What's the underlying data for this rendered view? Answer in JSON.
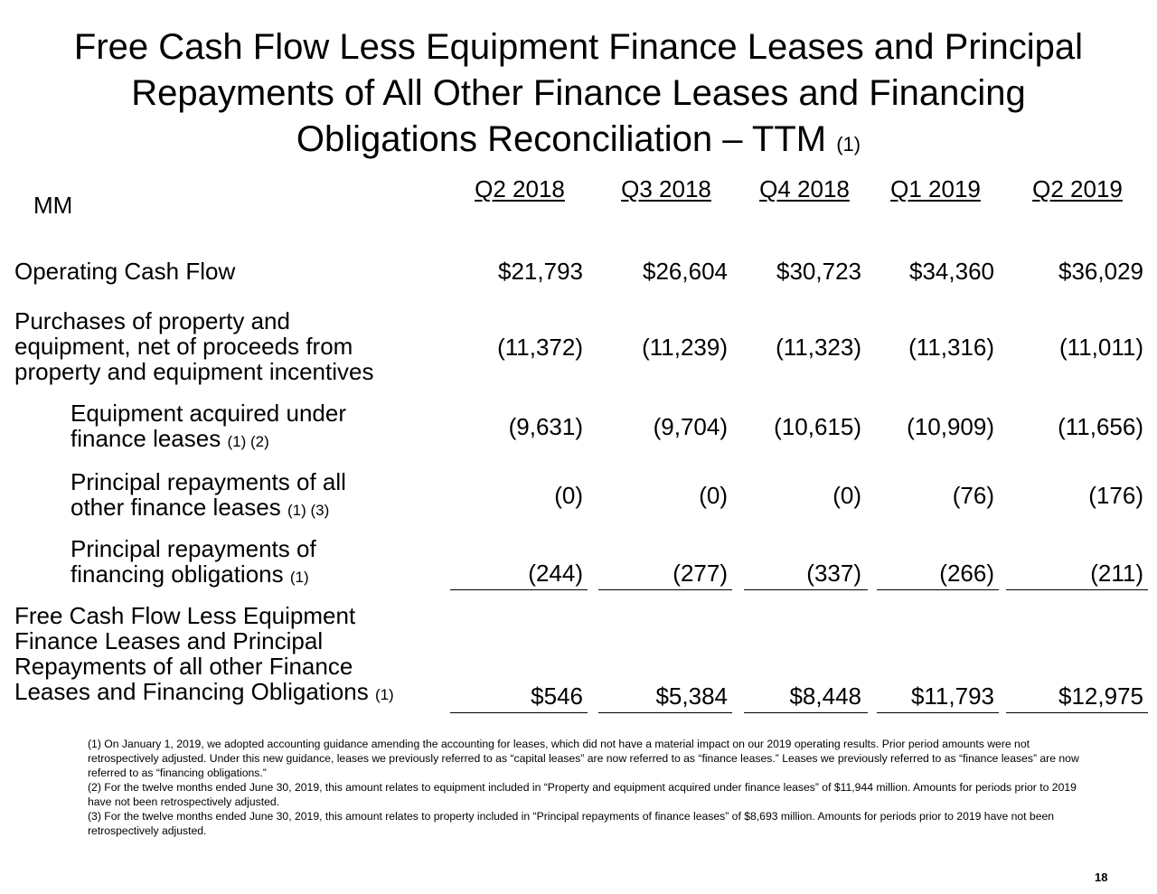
{
  "title": {
    "lines": [
      "Free Cash Flow Less Equipment Finance Leases and Principal",
      "Repayments of All Other Finance Leases and Financing",
      "Obligations Reconciliation – TTM"
    ],
    "note": "(1)"
  },
  "table": {
    "unit": "MM",
    "columns": [
      "Q2 2018",
      "Q3 2018",
      "Q4 2018",
      "Q1 2019",
      "Q2 2019"
    ],
    "rows": [
      {
        "label": [
          "Operating Cash Flow"
        ],
        "values": [
          "$21,793",
          "$26,604",
          "$30,723",
          "$34,360",
          "$36,029"
        ]
      },
      {
        "label": [
          "Purchases of property and",
          "equipment, net of proceeds from",
          "property and equipment incentives"
        ],
        "values": [
          "(11,372)",
          "(11,239)",
          "(11,323)",
          "(11,316)",
          "(11,011)"
        ]
      },
      {
        "label": [
          "Equipment acquired under",
          "finance leases"
        ],
        "note": "(1) (2)",
        "values": [
          "(9,631)",
          "(9,704)",
          "(10,615)",
          "(10,909)",
          "(11,656)"
        ]
      },
      {
        "label": [
          "Principal repayments of all",
          "other finance leases"
        ],
        "note": "(1) (3)",
        "values": [
          "(0)",
          "(0)",
          "(0)",
          "(76)",
          "(176)"
        ]
      },
      {
        "label": [
          "Principal repayments of",
          "financing obligations"
        ],
        "note": "(1)",
        "values": [
          "(244)",
          "(277)",
          "(337)",
          "(266)",
          "(211)"
        ]
      },
      {
        "label": [
          "Free Cash Flow Less Equipment",
          "Finance Leases and Principal",
          "Repayments of all other Finance",
          "Leases and Financing Obligations"
        ],
        "note": "(1)",
        "values": [
          "$546",
          "$5,384",
          "$8,448",
          "$11,793",
          "$12,975"
        ]
      }
    ]
  },
  "footnotes": [
    "(1) On January 1, 2019, we adopted accounting guidance amending the accounting for leases, which did not have a material impact on our 2019 operating results. Prior period amounts were not retrospectively adjusted. Under this new guidance, leases we previously referred to as “capital leases” are now referred to as “finance leases.” Leases we previously referred to as “finance leases” are now referred to as “financing obligations.”",
    "(2) For the twelve months ended June 30, 2019, this amount relates to equipment included in “Property and equipment acquired under finance leases” of $11,944 million. Amounts for periods prior to 2019 have not been retrospectively adjusted.",
    "(3) For the twelve months ended June 30, 2019, this amount relates to property included in “Principal repayments of finance leases” of $8,693 million. Amounts for periods prior to 2019 have not been retrospectively adjusted."
  ],
  "page_number": "18"
}
